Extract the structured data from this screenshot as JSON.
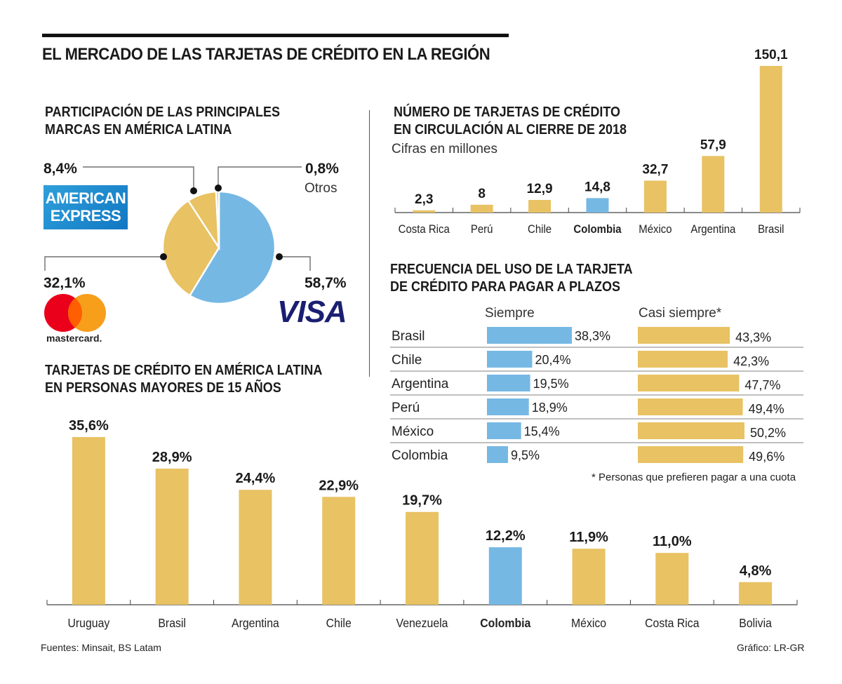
{
  "title": "EL MERCADO DE LAS TARJETAS DE CRÉDITO EN LA REGIÓN",
  "colors": {
    "gold": "#e8c263",
    "blue": "#76b8e4",
    "dark": "#1a1a1a",
    "visa": "#1a1f71",
    "mc_red": "#eb001b",
    "mc_orange": "#f79e1b",
    "amex": "#2a8fd0"
  },
  "logos": {
    "amex_line1": "AMERICAN",
    "amex_line2": "EXPRESS",
    "visa": "VISA",
    "mastercard": "mastercard."
  },
  "footer": {
    "sources": "Fuentes: Minsait, BS Latam",
    "credit": "Gráfico: LR-GR"
  },
  "chart_data": [
    {
      "type": "pie",
      "title": "PARTICIPACIÓN DE LAS PRINCIPALES MARCAS EN AMÉRICA LATINA",
      "title_line1": "PARTICIPACIÓN DE LAS PRINCIPALES",
      "title_line2": "MARCAS EN AMÉRICA LATINA",
      "slices": [
        {
          "name": "Visa",
          "value": 58.7,
          "label": "58,7%",
          "color": "#76b8e4"
        },
        {
          "name": "Mastercard",
          "value": 32.1,
          "label": "32,1%",
          "color": "#e8c263"
        },
        {
          "name": "American Express",
          "value": 8.4,
          "label": "8,4%",
          "color": "#e8c263"
        },
        {
          "name": "Otros",
          "value": 0.8,
          "label": "0,8%",
          "sublabel": "Otros",
          "color": "#e8c263"
        }
      ]
    },
    {
      "type": "bar",
      "title": "NÚMERO DE TARJETAS DE CRÉDITO EN CIRCULACIÓN AL CIERRE DE 2018",
      "title_line1": "NÚMERO DE TARJETAS DE CRÉDITO",
      "title_line2": "EN CIRCULACIÓN AL CIERRE DE 2018",
      "subtitle": "Cifras en millones",
      "categories": [
        "Costa Rica",
        "Perú",
        "Chile",
        "Colombia",
        "México",
        "Argentina",
        "Brasil"
      ],
      "values": [
        2.3,
        8,
        12.9,
        14.8,
        32.7,
        57.9,
        150.1
      ],
      "labels": [
        "2,3",
        "8",
        "12,9",
        "14,8",
        "32,7",
        "57,9",
        "150,1"
      ],
      "highlight": "Colombia",
      "ylim": [
        0,
        150.1
      ]
    },
    {
      "type": "bar",
      "orientation": "horizontal",
      "title": "FRECUENCIA DEL USO DE LA TARJETA DE CRÉDITO PARA PAGAR A PLAZOS",
      "title_line1": "FRECUENCIA DEL USO DE LA TARJETA",
      "title_line2": "DE CRÉDITO PARA PAGAR A PLAZOS",
      "categories": [
        "Brasil",
        "Chile",
        "Argentina",
        "Perú",
        "México",
        "Colombia"
      ],
      "series": [
        {
          "name": "Siempre",
          "values": [
            38.3,
            20.4,
            19.5,
            18.9,
            15.4,
            9.5
          ],
          "labels": [
            "38,3%",
            "20,4%",
            "19,5%",
            "18,9%",
            "15,4%",
            "9,5%"
          ],
          "color": "#76b8e4"
        },
        {
          "name": "Casi siempre*",
          "values": [
            43.3,
            42.3,
            47.7,
            49.4,
            50.2,
            49.6
          ],
          "labels": [
            "43,3%",
            "42,3%",
            "47,7%",
            "49,4%",
            "50,2%",
            "49,6%"
          ],
          "color": "#e8c263"
        }
      ],
      "footnote": "* Personas que prefieren pagar a una cuota"
    },
    {
      "type": "bar",
      "title": "TARJETAS DE CRÉDITO EN AMÉRICA LATINA EN PERSONAS MAYORES DE 15 AÑOS",
      "title_line1": "TARJETAS DE CRÉDITO EN AMÉRICA LATINA",
      "title_line2": "EN PERSONAS MAYORES DE 15 AÑOS",
      "categories": [
        "Uruguay",
        "Brasil",
        "Argentina",
        "Chile",
        "Venezuela",
        "Colombia",
        "México",
        "Costa Rica",
        "Bolivia"
      ],
      "values": [
        35.6,
        28.9,
        24.4,
        22.9,
        19.7,
        12.2,
        11.9,
        11.0,
        4.8
      ],
      "labels": [
        "35,6%",
        "28,9%",
        "24,4%",
        "22,9%",
        "19,7%",
        "12,2%",
        "11,9%",
        "11,0%",
        "4,8%"
      ],
      "highlight": "Colombia",
      "ylim": [
        0,
        35.6
      ]
    }
  ]
}
